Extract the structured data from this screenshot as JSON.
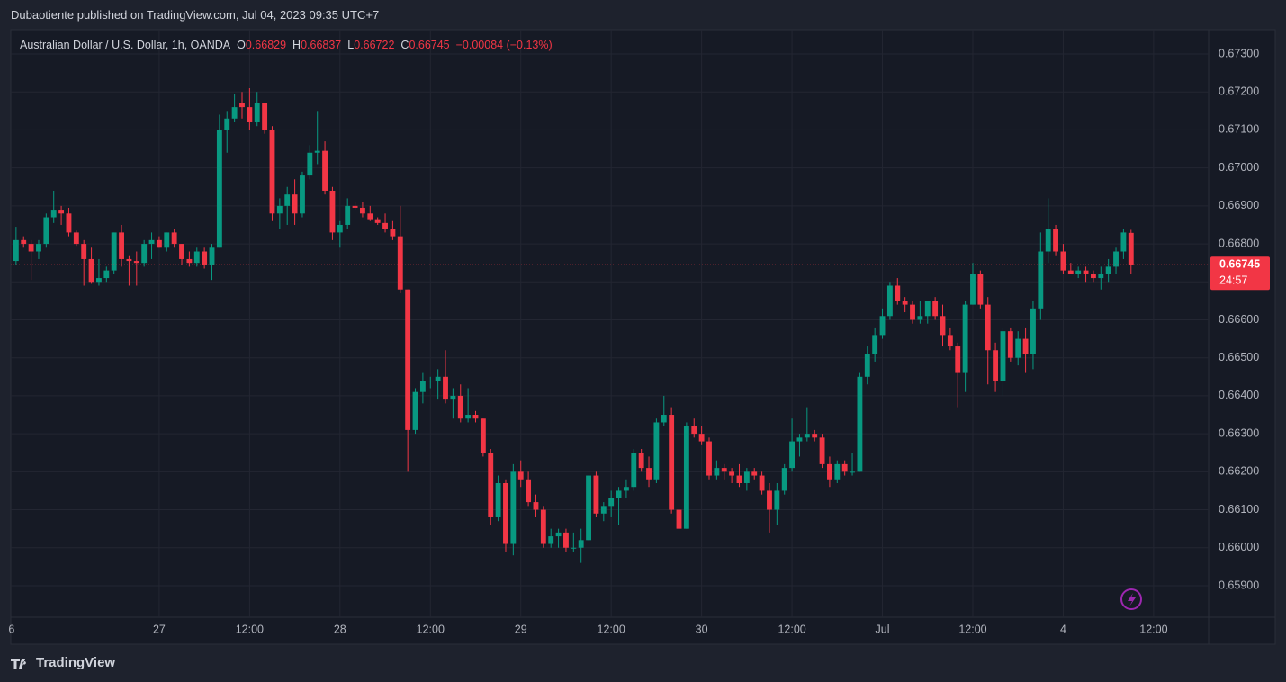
{
  "published": "Dubaotiente published on TradingView.com, Jul 04, 2023 09:35 UTC+7",
  "footer": {
    "brand": "TradingView"
  },
  "chart_data": {
    "type": "candlestick",
    "title": "Australian Dollar / U.S. Dollar, 1h, OANDA",
    "legend": [
      {
        "key": "O",
        "value": "0.66829"
      },
      {
        "key": "H",
        "value": "0.66837"
      },
      {
        "key": "L",
        "value": "0.66722"
      },
      {
        "key": "C",
        "value": "0.66745"
      }
    ],
    "change": "−0.00084 (−0.13%)",
    "up_color": "#089981",
    "down_color": "#f23645",
    "grid": true,
    "open": [
      0.66755,
      0.6681,
      0.668,
      0.6678,
      0.668,
      0.6687,
      0.6689,
      0.6688,
      0.6683,
      0.668,
      0.6676,
      0.667,
      0.6671,
      0.6673,
      0.6683,
      0.6676,
      0.66755,
      0.6675,
      0.668,
      0.6681,
      0.6679,
      0.6683,
      0.668,
      0.6676,
      0.6675,
      0.6678,
      0.66745,
      0.6679,
      0.671,
      0.6713,
      0.6717,
      0.6716,
      0.6712,
      0.6717,
      0.671,
      0.6688,
      0.669,
      0.6693,
      0.6688,
      0.6698,
      0.6704,
      0.67045,
      0.6694,
      0.6683,
      0.6685,
      0.669,
      0.66895,
      0.6688,
      0.66865,
      0.66855,
      0.6684,
      0.6682,
      0.6668,
      0.6631,
      0.6641,
      0.6644,
      0.6644,
      0.6645,
      0.6639,
      0.664,
      0.6634,
      0.6635,
      0.6634,
      0.6625,
      0.6608,
      0.6617,
      0.6601,
      0.662,
      0.6618,
      0.6612,
      0.661,
      0.6601,
      0.6603,
      0.6604,
      0.66,
      0.66,
      0.6602,
      0.6619,
      0.6609,
      0.6611,
      0.6613,
      0.6615,
      0.6616,
      0.6625,
      0.6621,
      0.6618,
      0.6633,
      0.6635,
      0.661,
      0.6605,
      0.6632,
      0.663,
      0.6628,
      0.6619,
      0.6621,
      0.662,
      0.6619,
      0.6617,
      0.662,
      0.6619,
      0.6615,
      0.661,
      0.6615,
      0.6621,
      0.6628,
      0.6629,
      0.663,
      0.6629,
      0.6622,
      0.6618,
      0.6622,
      0.662,
      0.662,
      0.6645,
      0.6651,
      0.6656,
      0.6661,
      0.6669,
      0.6665,
      0.6664,
      0.666,
      0.6661,
      0.6665,
      0.6661,
      0.6656,
      0.6653,
      0.6646,
      0.6664,
      0.6672,
      0.6664,
      0.6652,
      0.6644,
      0.6657,
      0.665,
      0.6655,
      0.6651,
      0.6663,
      0.6678,
      0.6684,
      0.6678,
      0.6673,
      0.6672,
      0.6673,
      0.6672,
      0.6671,
      0.6672,
      0.6674,
      0.6678,
      0.66829
    ],
    "high": [
      0.66845,
      0.6682,
      0.6681,
      0.6681,
      0.6688,
      0.6694,
      0.669,
      0.66895,
      0.66835,
      0.6681,
      0.6679,
      0.6676,
      0.6674,
      0.6683,
      0.6685,
      0.6677,
      0.6678,
      0.6681,
      0.6683,
      0.6682,
      0.6683,
      0.6684,
      0.668,
      0.6678,
      0.6679,
      0.6679,
      0.668,
      0.6714,
      0.6715,
      0.67195,
      0.672,
      0.6721,
      0.672,
      0.6717,
      0.6711,
      0.6692,
      0.6695,
      0.6697,
      0.6699,
      0.6706,
      0.6715,
      0.6707,
      0.6695,
      0.6686,
      0.6692,
      0.6691,
      0.6691,
      0.669,
      0.6687,
      0.6688,
      0.6686,
      0.669,
      0.6668,
      0.6642,
      0.6646,
      0.6645,
      0.6647,
      0.6652,
      0.6642,
      0.6643,
      0.6642,
      0.6636,
      0.6634,
      0.6626,
      0.6619,
      0.6618,
      0.6622,
      0.6623,
      0.662,
      0.6614,
      0.6611,
      0.6605,
      0.6605,
      0.6605,
      0.6604,
      0.6605,
      0.6619,
      0.662,
      0.6612,
      0.6615,
      0.6616,
      0.6618,
      0.6626,
      0.6626,
      0.6624,
      0.6634,
      0.664,
      0.6637,
      0.6613,
      0.6633,
      0.6634,
      0.6632,
      0.6629,
      0.6623,
      0.6622,
      0.6621,
      0.6622,
      0.6621,
      0.6621,
      0.662,
      0.6617,
      0.6617,
      0.6622,
      0.6634,
      0.663,
      0.6637,
      0.6631,
      0.663,
      0.6624,
      0.6623,
      0.6623,
      0.6625,
      0.6646,
      0.6653,
      0.6658,
      0.6663,
      0.667,
      0.6671,
      0.6666,
      0.6665,
      0.6665,
      0.6665,
      0.6666,
      0.6664,
      0.6658,
      0.6654,
      0.6665,
      0.6675,
      0.6673,
      0.6666,
      0.6654,
      0.6658,
      0.6658,
      0.6657,
      0.6658,
      0.6665,
      0.6683,
      0.6692,
      0.6685,
      0.668,
      0.6675,
      0.6674,
      0.6674,
      0.6673,
      0.6674,
      0.6676,
      0.6679,
      0.6684,
      0.66837
    ],
    "low": [
      0.66745,
      0.6679,
      0.66705,
      0.6676,
      0.6679,
      0.66855,
      0.6685,
      0.6682,
      0.66795,
      0.6669,
      0.66695,
      0.6669,
      0.667,
      0.6672,
      0.6674,
      0.6669,
      0.6669,
      0.6674,
      0.6676,
      0.6679,
      0.6678,
      0.6679,
      0.66745,
      0.6674,
      0.6674,
      0.66735,
      0.66705,
      0.6679,
      0.6704,
      0.6712,
      0.6713,
      0.671,
      0.6711,
      0.6709,
      0.6686,
      0.6684,
      0.6685,
      0.6685,
      0.6687,
      0.6697,
      0.6701,
      0.6693,
      0.6681,
      0.6679,
      0.6684,
      0.6689,
      0.6687,
      0.6686,
      0.6685,
      0.6683,
      0.6681,
      0.6667,
      0.662,
      0.663,
      0.6638,
      0.6642,
      0.6639,
      0.6638,
      0.6634,
      0.6633,
      0.6633,
      0.6633,
      0.6624,
      0.6606,
      0.6607,
      0.6599,
      0.6598,
      0.6616,
      0.6611,
      0.6608,
      0.66,
      0.66,
      0.66,
      0.6599,
      0.6599,
      0.6596,
      0.6602,
      0.6608,
      0.6607,
      0.6608,
      0.6606,
      0.6613,
      0.6615,
      0.662,
      0.6616,
      0.6617,
      0.6632,
      0.6609,
      0.6599,
      0.6605,
      0.6629,
      0.6627,
      0.6618,
      0.6618,
      0.6618,
      0.6617,
      0.6616,
      0.6615,
      0.6618,
      0.6614,
      0.6604,
      0.6606,
      0.6614,
      0.662,
      0.6624,
      0.6628,
      0.6628,
      0.6621,
      0.6616,
      0.6617,
      0.6619,
      0.6619,
      0.662,
      0.6643,
      0.6649,
      0.6655,
      0.666,
      0.6664,
      0.6662,
      0.6659,
      0.6659,
      0.6659,
      0.666,
      0.6653,
      0.6652,
      0.6637,
      0.6641,
      0.6664,
      0.6663,
      0.6643,
      0.6641,
      0.664,
      0.6649,
      0.6648,
      0.6646,
      0.6647,
      0.666,
      0.6675,
      0.6677,
      0.6672,
      0.6672,
      0.6671,
      0.667,
      0.667,
      0.6668,
      0.667,
      0.6672,
      0.6676,
      0.66722
    ],
    "close": [
      0.6681,
      0.668,
      0.6678,
      0.668,
      0.6687,
      0.6689,
      0.6688,
      0.6683,
      0.668,
      0.6676,
      0.667,
      0.6671,
      0.6673,
      0.6683,
      0.6676,
      0.66755,
      0.6675,
      0.668,
      0.6681,
      0.6679,
      0.6683,
      0.668,
      0.6676,
      0.6675,
      0.6678,
      0.66745,
      0.6679,
      0.671,
      0.6713,
      0.6716,
      0.6716,
      0.6712,
      0.6717,
      0.671,
      0.6688,
      0.669,
      0.6693,
      0.6688,
      0.6698,
      0.6704,
      0.67045,
      0.6694,
      0.6683,
      0.6685,
      0.669,
      0.66895,
      0.6688,
      0.66865,
      0.66855,
      0.6684,
      0.6682,
      0.6668,
      0.6631,
      0.6641,
      0.6644,
      0.6644,
      0.6645,
      0.6639,
      0.664,
      0.6634,
      0.6635,
      0.6634,
      0.6625,
      0.6608,
      0.6617,
      0.6601,
      0.662,
      0.6618,
      0.6612,
      0.661,
      0.6601,
      0.6603,
      0.6604,
      0.66,
      0.66,
      0.6602,
      0.6619,
      0.6609,
      0.6611,
      0.6613,
      0.6615,
      0.6616,
      0.6625,
      0.6621,
      0.6618,
      0.6633,
      0.6635,
      0.661,
      0.6605,
      0.6632,
      0.663,
      0.6628,
      0.6619,
      0.6621,
      0.662,
      0.6619,
      0.6617,
      0.662,
      0.6619,
      0.6615,
      0.661,
      0.6615,
      0.6621,
      0.6628,
      0.6629,
      0.663,
      0.6629,
      0.6622,
      0.6618,
      0.6622,
      0.662,
      0.662,
      0.6645,
      0.6651,
      0.6656,
      0.6661,
      0.6669,
      0.6665,
      0.6664,
      0.666,
      0.6661,
      0.6665,
      0.6661,
      0.6656,
      0.6653,
      0.6646,
      0.6664,
      0.6672,
      0.6664,
      0.6652,
      0.6644,
      0.6657,
      0.665,
      0.6655,
      0.6651,
      0.6663,
      0.6678,
      0.6684,
      0.6678,
      0.6673,
      0.6672,
      0.6673,
      0.6672,
      0.6671,
      0.6672,
      0.6674,
      0.6678,
      0.6683,
      0.66745
    ],
    "last_price": 0.66745,
    "countdown": "24:57",
    "xlim": [
      -0.7,
      158.3
    ],
    "xticks": [
      {
        "value": -0.6,
        "label": "6"
      },
      {
        "value": 19,
        "label": "27"
      },
      {
        "value": 31,
        "label": "12:00"
      },
      {
        "value": 43,
        "label": "28"
      },
      {
        "value": 55,
        "label": "12:00"
      },
      {
        "value": 67,
        "label": "29"
      },
      {
        "value": 79,
        "label": "12:00"
      },
      {
        "value": 91,
        "label": "30"
      },
      {
        "value": 103,
        "label": "12:00"
      },
      {
        "value": 115,
        "label": "Jul"
      },
      {
        "value": 127,
        "label": "12:00"
      },
      {
        "value": 139,
        "label": "4"
      },
      {
        "value": 151,
        "label": "12:00"
      }
    ],
    "ylim": [
      0.65817,
      0.67364
    ],
    "yticks": [
      {
        "value": 0.659,
        "label": "0.65900"
      },
      {
        "value": 0.66,
        "label": "0.66000"
      },
      {
        "value": 0.661,
        "label": "0.66100"
      },
      {
        "value": 0.662,
        "label": "0.66200"
      },
      {
        "value": 0.663,
        "label": "0.66300"
      },
      {
        "value": 0.664,
        "label": "0.66400"
      },
      {
        "value": 0.665,
        "label": "0.66500"
      },
      {
        "value": 0.666,
        "label": "0.66600"
      },
      {
        "value": 0.667,
        "label": "0.66700"
      },
      {
        "value": 0.668,
        "label": "0.66800"
      },
      {
        "value": 0.669,
        "label": "0.66900"
      },
      {
        "value": 0.67,
        "label": "0.67000"
      },
      {
        "value": 0.671,
        "label": "0.67100"
      },
      {
        "value": 0.672,
        "label": "0.67200"
      },
      {
        "value": 0.673,
        "label": "0.67300"
      }
    ]
  }
}
